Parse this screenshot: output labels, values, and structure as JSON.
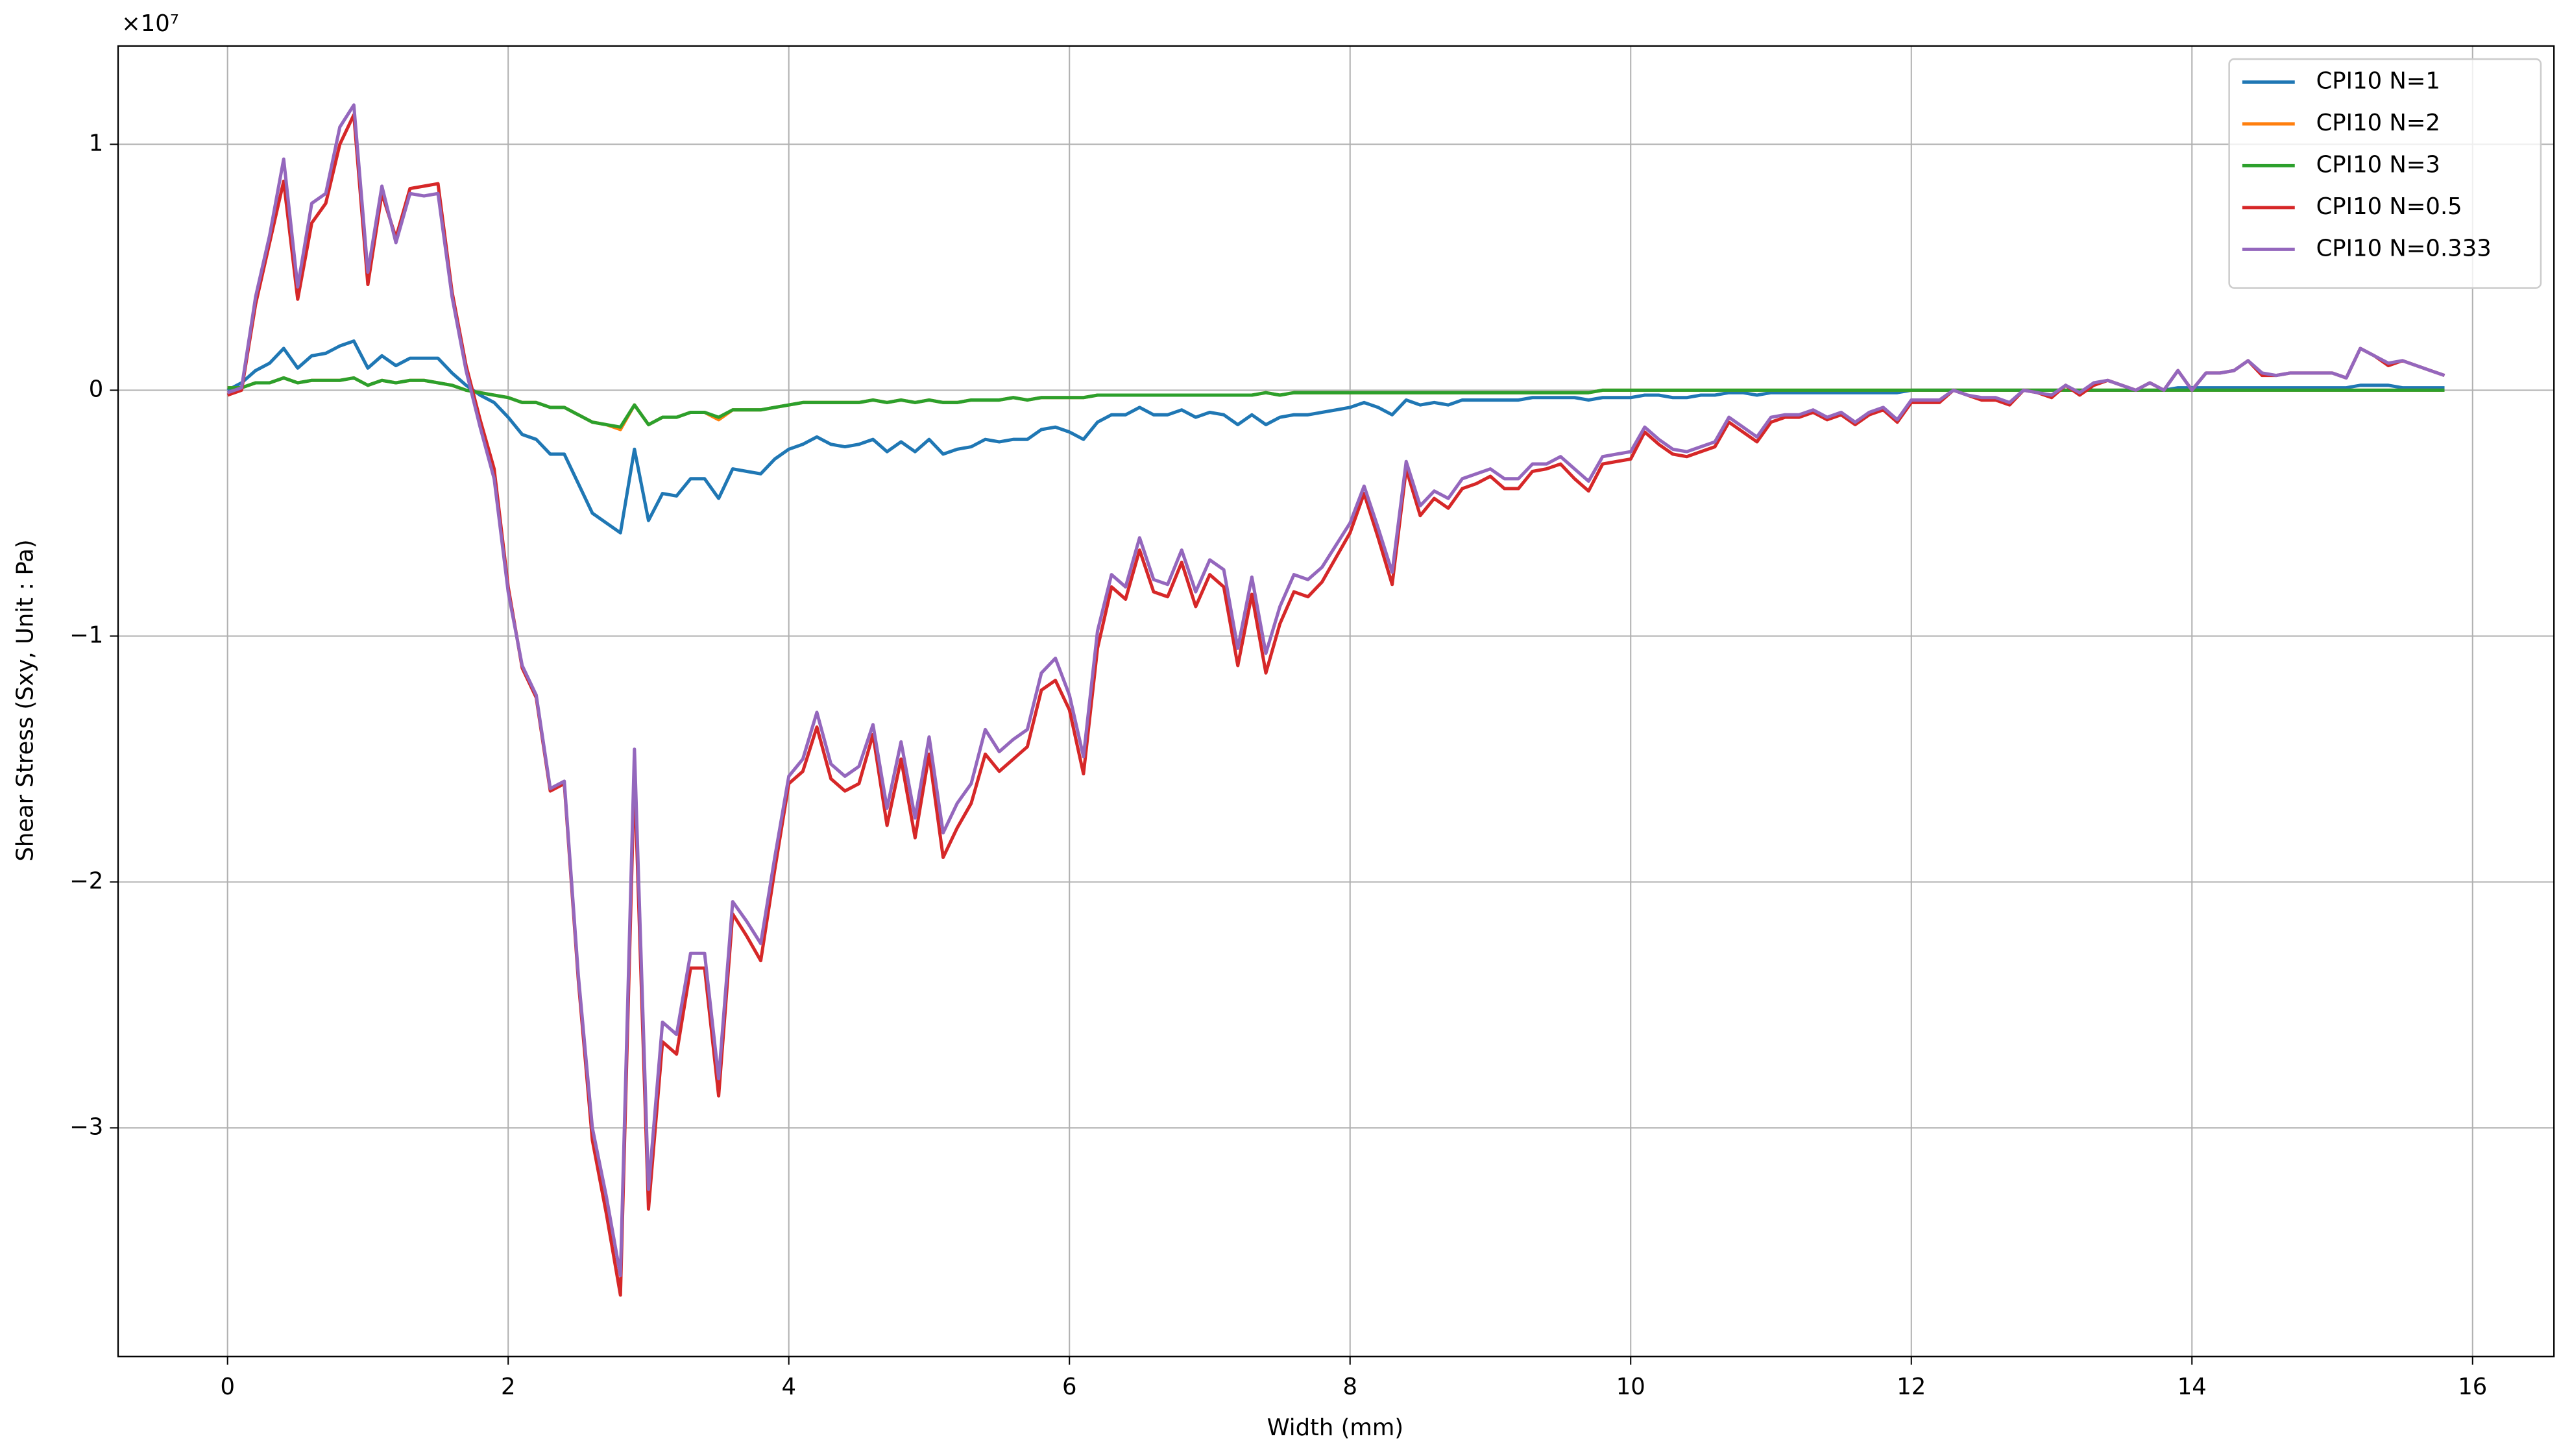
{
  "chart_data": {
    "type": "line",
    "xlabel": "Width (mm)",
    "ylabel": "Shear Stress (Sxy, Unit : Pa)",
    "y_offset_label": "×10⁷",
    "xlim": [
      -0.78,
      16.58
    ],
    "ylim": [
      -3.93,
      1.4
    ],
    "xticks": [
      0,
      2,
      4,
      6,
      8,
      10,
      12,
      14,
      16
    ],
    "yticks": [
      {
        "value": -3,
        "label": "−3"
      },
      {
        "value": -2,
        "label": "−2"
      },
      {
        "value": -1,
        "label": "−1"
      },
      0,
      1
    ],
    "grid": true,
    "legend": "upper right",
    "x": [
      0,
      0.1,
      0.2,
      0.3,
      0.4,
      0.5,
      0.6,
      0.7,
      0.8,
      0.9,
      1.0,
      1.1,
      1.2,
      1.3,
      1.4,
      1.5,
      1.6,
      1.7,
      1.8,
      1.9,
      2.0,
      2.1,
      2.2,
      2.3,
      2.4,
      2.5,
      2.6,
      2.7,
      2.8,
      2.9,
      3.0,
      3.1,
      3.2,
      3.3,
      3.4,
      3.5,
      3.6,
      3.7,
      3.8,
      3.9,
      4.0,
      4.1,
      4.2,
      4.3,
      4.4,
      4.5,
      4.6,
      4.7,
      4.8,
      4.9,
      5.0,
      5.1,
      5.2,
      5.3,
      5.4,
      5.5,
      5.6,
      5.7,
      5.8,
      5.9,
      6.0,
      6.1,
      6.2,
      6.3,
      6.4,
      6.5,
      6.6,
      6.7,
      6.8,
      6.9,
      7.0,
      7.1,
      7.2,
      7.3,
      7.4,
      7.5,
      7.6,
      7.7,
      7.8,
      7.9,
      8.0,
      8.1,
      8.2,
      8.3,
      8.4,
      8.5,
      8.6,
      8.7,
      8.8,
      8.9,
      9.0,
      9.1,
      9.2,
      9.3,
      9.4,
      9.5,
      9.6,
      9.7,
      9.8,
      9.9,
      10.0,
      10.1,
      10.2,
      10.3,
      10.4,
      10.5,
      10.6,
      10.7,
      10.8,
      10.9,
      11.0,
      11.1,
      11.2,
      11.3,
      11.4,
      11.5,
      11.6,
      11.7,
      11.8,
      11.9,
      12.0,
      12.1,
      12.2,
      12.3,
      12.4,
      12.5,
      12.6,
      12.7,
      12.8,
      12.9,
      13.0,
      13.1,
      13.2,
      13.3,
      13.4,
      13.5,
      13.6,
      13.7,
      13.8,
      13.9,
      14.0,
      14.1,
      14.2,
      14.3,
      14.4,
      14.5,
      14.6,
      14.7,
      14.8,
      14.9,
      15.0,
      15.1,
      15.2,
      15.3,
      15.4,
      15.5,
      15.6,
      15.7,
      15.8
    ],
    "series": [
      {
        "name": "CPI10 N=1",
        "color": "#1f77b4",
        "values": [
          0.0,
          0.03,
          0.08,
          0.11,
          0.17,
          0.09,
          0.14,
          0.15,
          0.18,
          0.2,
          0.09,
          0.14,
          0.1,
          0.13,
          0.13,
          0.13,
          0.07,
          0.02,
          -0.02,
          -0.05,
          -0.11,
          -0.18,
          -0.2,
          -0.26,
          -0.26,
          -0.38,
          -0.5,
          -0.54,
          -0.58,
          -0.24,
          -0.53,
          -0.42,
          -0.43,
          -0.36,
          -0.36,
          -0.44,
          -0.32,
          -0.33,
          -0.34,
          -0.28,
          -0.24,
          -0.22,
          -0.19,
          -0.22,
          -0.23,
          -0.22,
          -0.2,
          -0.25,
          -0.21,
          -0.25,
          -0.2,
          -0.26,
          -0.24,
          -0.23,
          -0.2,
          -0.21,
          -0.2,
          -0.2,
          -0.16,
          -0.15,
          -0.17,
          -0.2,
          -0.13,
          -0.1,
          -0.1,
          -0.07,
          -0.1,
          -0.1,
          -0.08,
          -0.11,
          -0.09,
          -0.1,
          -0.14,
          -0.1,
          -0.14,
          -0.11,
          -0.1,
          -0.1,
          -0.09,
          -0.08,
          -0.07,
          -0.05,
          -0.07,
          -0.1,
          -0.04,
          -0.06,
          -0.05,
          -0.06,
          -0.04,
          -0.04,
          -0.04,
          -0.04,
          -0.04,
          -0.03,
          -0.03,
          -0.03,
          -0.03,
          -0.04,
          -0.03,
          -0.03,
          -0.03,
          -0.02,
          -0.02,
          -0.03,
          -0.03,
          -0.02,
          -0.02,
          -0.01,
          -0.01,
          -0.02,
          -0.01,
          -0.01,
          -0.01,
          -0.01,
          -0.01,
          -0.01,
          -0.01,
          -0.01,
          -0.01,
          -0.01,
          0,
          0,
          0,
          0,
          0,
          0,
          0,
          0,
          0,
          0,
          0,
          0,
          0,
          0,
          0,
          0,
          0,
          0,
          0,
          0.01,
          0.01,
          0.01,
          0.01,
          0.01,
          0.01,
          0.01,
          0.01,
          0.01,
          0.01,
          0.01,
          0.01,
          0.01,
          0.02,
          0.02,
          0.02,
          0.01,
          0.01,
          0.01,
          0.01
        ]
      },
      {
        "name": "CPI10 N=2",
        "color": "#ff7f0e",
        "values": [
          0.01,
          0.01,
          0.03,
          0.03,
          0.05,
          0.03,
          0.04,
          0.04,
          0.04,
          0.05,
          0.02,
          0.04,
          0.03,
          0.04,
          0.04,
          0.03,
          0.02,
          0.0,
          -0.01,
          -0.02,
          -0.03,
          -0.05,
          -0.05,
          -0.07,
          -0.07,
          -0.1,
          -0.13,
          -0.14,
          -0.16,
          -0.06,
          -0.14,
          -0.11,
          -0.11,
          -0.09,
          -0.09,
          -0.12,
          -0.08,
          -0.08,
          -0.08,
          -0.07,
          -0.06,
          -0.05,
          -0.05,
          -0.05,
          -0.05,
          -0.05,
          -0.04,
          -0.05,
          -0.04,
          -0.05,
          -0.04,
          -0.05,
          -0.05,
          -0.04,
          -0.04,
          -0.04,
          -0.03,
          -0.04,
          -0.03,
          -0.03,
          -0.03,
          -0.03,
          -0.02,
          -0.02,
          -0.02,
          -0.02,
          -0.02,
          -0.02,
          -0.02,
          -0.02,
          -0.02,
          -0.02,
          -0.02,
          -0.02,
          -0.01,
          -0.02,
          -0.01,
          -0.01,
          -0.01,
          -0.01,
          -0.01,
          -0.01,
          -0.01,
          -0.01,
          -0.01,
          -0.01,
          -0.01,
          -0.01,
          -0.01,
          -0.01,
          -0.01,
          -0.01,
          -0.01,
          -0.01,
          -0.01,
          -0.01,
          -0.01,
          -0.01,
          0,
          0,
          0,
          0,
          0,
          0,
          0,
          0,
          0,
          0,
          0,
          0,
          0,
          0,
          0,
          0,
          0,
          0,
          0,
          0,
          0,
          0,
          0,
          0,
          0,
          0,
          0,
          0,
          0,
          0,
          0,
          0,
          0,
          0,
          0,
          0,
          0,
          0,
          0,
          0,
          0,
          0,
          0,
          0,
          0,
          0,
          0,
          0,
          0,
          0,
          0,
          0,
          0,
          0,
          0,
          0,
          0,
          0,
          0,
          0,
          0
        ]
      },
      {
        "name": "CPI10 N=3",
        "color": "#2ca02c",
        "values": [
          0.01,
          0.01,
          0.03,
          0.03,
          0.05,
          0.03,
          0.04,
          0.04,
          0.04,
          0.05,
          0.02,
          0.04,
          0.03,
          0.04,
          0.04,
          0.03,
          0.02,
          0.0,
          -0.01,
          -0.02,
          -0.03,
          -0.05,
          -0.05,
          -0.07,
          -0.07,
          -0.1,
          -0.13,
          -0.14,
          -0.15,
          -0.06,
          -0.14,
          -0.11,
          -0.11,
          -0.09,
          -0.09,
          -0.11,
          -0.08,
          -0.08,
          -0.08,
          -0.07,
          -0.06,
          -0.05,
          -0.05,
          -0.05,
          -0.05,
          -0.05,
          -0.04,
          -0.05,
          -0.04,
          -0.05,
          -0.04,
          -0.05,
          -0.05,
          -0.04,
          -0.04,
          -0.04,
          -0.03,
          -0.04,
          -0.03,
          -0.03,
          -0.03,
          -0.03,
          -0.02,
          -0.02,
          -0.02,
          -0.02,
          -0.02,
          -0.02,
          -0.02,
          -0.02,
          -0.02,
          -0.02,
          -0.02,
          -0.02,
          -0.01,
          -0.02,
          -0.01,
          -0.01,
          -0.01,
          -0.01,
          -0.01,
          -0.01,
          -0.01,
          -0.01,
          -0.01,
          -0.01,
          -0.01,
          -0.01,
          -0.01,
          -0.01,
          -0.01,
          -0.01,
          -0.01,
          -0.01,
          -0.01,
          -0.01,
          -0.01,
          -0.01,
          0,
          0,
          0,
          0,
          0,
          0,
          0,
          0,
          0,
          0,
          0,
          0,
          0,
          0,
          0,
          0,
          0,
          0,
          0,
          0,
          0,
          0,
          0,
          0,
          0,
          0,
          0,
          0,
          0,
          0,
          0,
          0,
          0,
          0,
          0,
          0,
          0,
          0,
          0,
          0,
          0,
          0,
          0,
          0,
          0,
          0,
          0,
          0,
          0,
          0,
          0,
          0,
          0,
          0,
          0,
          0,
          0,
          0,
          0,
          0,
          0
        ]
      },
      {
        "name": "CPI10 N=0.5",
        "color": "#d62728",
        "values": [
          -0.02,
          0.0,
          0.35,
          0.6,
          0.85,
          0.37,
          0.68,
          0.76,
          1.0,
          1.12,
          0.43,
          0.8,
          0.62,
          0.82,
          0.83,
          0.84,
          0.4,
          0.1,
          -0.12,
          -0.32,
          -0.8,
          -1.13,
          -1.25,
          -1.63,
          -1.6,
          -2.4,
          -3.05,
          -3.35,
          -3.68,
          -1.55,
          -3.33,
          -2.65,
          -2.7,
          -2.35,
          -2.35,
          -2.87,
          -2.13,
          -2.22,
          -2.32,
          -1.95,
          -1.6,
          -1.55,
          -1.37,
          -1.58,
          -1.63,
          -1.6,
          -1.4,
          -1.77,
          -1.5,
          -1.82,
          -1.48,
          -1.9,
          -1.78,
          -1.68,
          -1.48,
          -1.55,
          -1.5,
          -1.45,
          -1.22,
          -1.18,
          -1.3,
          -1.56,
          -1.05,
          -0.8,
          -0.85,
          -0.65,
          -0.82,
          -0.84,
          -0.7,
          -0.88,
          -0.75,
          -0.8,
          -1.12,
          -0.83,
          -1.15,
          -0.95,
          -0.82,
          -0.84,
          -0.78,
          -0.68,
          -0.58,
          -0.42,
          -0.6,
          -0.79,
          -0.32,
          -0.51,
          -0.44,
          -0.48,
          -0.4,
          -0.38,
          -0.35,
          -0.4,
          -0.4,
          -0.33,
          -0.32,
          -0.3,
          -0.36,
          -0.41,
          -0.3,
          -0.29,
          -0.28,
          -0.17,
          -0.22,
          -0.26,
          -0.27,
          -0.25,
          -0.23,
          -0.13,
          -0.17,
          -0.21,
          -0.13,
          -0.11,
          -0.11,
          -0.09,
          -0.12,
          -0.1,
          -0.14,
          -0.1,
          -0.08,
          -0.13,
          -0.05,
          -0.05,
          -0.05,
          0.0,
          -0.02,
          -0.04,
          -0.04,
          -0.06,
          0.0,
          -0.01,
          -0.03,
          0.02,
          -0.02,
          0.02,
          0.04,
          0.02,
          0.0,
          0.03,
          0.0,
          0.08,
          0.0,
          0.07,
          0.07,
          0.08,
          0.12,
          0.06,
          0.06,
          0.07,
          0.07,
          0.07,
          0.07,
          0.05,
          0.17,
          0.14,
          0.1,
          0.12,
          0.1,
          0.08,
          0.06
        ]
      },
      {
        "name": "CPI10 N=0.333",
        "color": "#9467bd",
        "values": [
          -0.01,
          0.01,
          0.38,
          0.63,
          0.94,
          0.42,
          0.76,
          0.8,
          1.07,
          1.16,
          0.48,
          0.83,
          0.6,
          0.8,
          0.79,
          0.8,
          0.38,
          0.08,
          -0.15,
          -0.36,
          -0.82,
          -1.12,
          -1.24,
          -1.62,
          -1.59,
          -2.38,
          -3.0,
          -3.28,
          -3.6,
          -1.46,
          -3.25,
          -2.57,
          -2.62,
          -2.29,
          -2.29,
          -2.8,
          -2.08,
          -2.16,
          -2.25,
          -1.9,
          -1.57,
          -1.5,
          -1.31,
          -1.52,
          -1.57,
          -1.53,
          -1.36,
          -1.7,
          -1.43,
          -1.74,
          -1.41,
          -1.8,
          -1.68,
          -1.6,
          -1.38,
          -1.47,
          -1.42,
          -1.38,
          -1.15,
          -1.09,
          -1.24,
          -1.49,
          -0.98,
          -0.75,
          -0.8,
          -0.6,
          -0.77,
          -0.79,
          -0.65,
          -0.82,
          -0.69,
          -0.73,
          -1.05,
          -0.76,
          -1.07,
          -0.88,
          -0.75,
          -0.77,
          -0.72,
          -0.63,
          -0.54,
          -0.39,
          -0.56,
          -0.74,
          -0.29,
          -0.47,
          -0.41,
          -0.44,
          -0.36,
          -0.34,
          -0.32,
          -0.36,
          -0.36,
          -0.3,
          -0.3,
          -0.27,
          -0.32,
          -0.37,
          -0.27,
          -0.26,
          -0.25,
          -0.15,
          -0.2,
          -0.24,
          -0.25,
          -0.23,
          -0.21,
          -0.11,
          -0.15,
          -0.19,
          -0.11,
          -0.1,
          -0.1,
          -0.08,
          -0.11,
          -0.09,
          -0.13,
          -0.09,
          -0.07,
          -0.12,
          -0.04,
          -0.04,
          -0.04,
          0.0,
          -0.02,
          -0.03,
          -0.03,
          -0.05,
          0.0,
          -0.01,
          -0.02,
          0.02,
          -0.01,
          0.03,
          0.04,
          0.02,
          0.0,
          0.03,
          0.0,
          0.08,
          0.0,
          0.07,
          0.07,
          0.08,
          0.12,
          0.07,
          0.06,
          0.07,
          0.07,
          0.07,
          0.07,
          0.05,
          0.17,
          0.14,
          0.11,
          0.12,
          0.1,
          0.08,
          0.06
        ]
      }
    ]
  }
}
